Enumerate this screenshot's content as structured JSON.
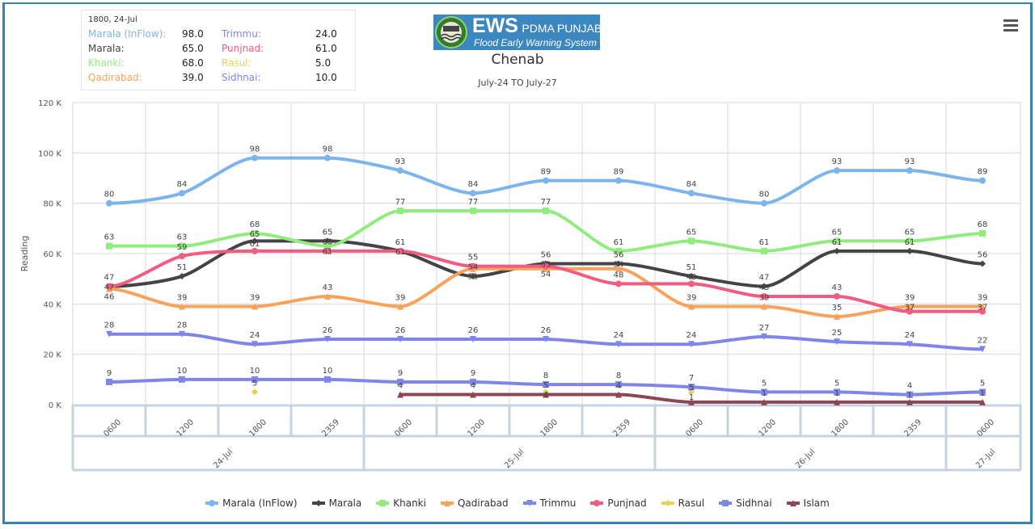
{
  "logo": {
    "text_main": "EWS",
    "text_side": "PDMA PUNJAB",
    "text_sub": "Flood Early Warning System"
  },
  "menu_icon": "hamburger-menu-icon",
  "tooltip": {
    "header": "1800, 24-Jul",
    "rows": [
      {
        "name": "Marala (InFlow):",
        "value": "98.0"
      },
      {
        "name": "Marala:",
        "value": "65.0"
      },
      {
        "name": "Khanki:",
        "value": "68.0"
      },
      {
        "name": "Qadirabad:",
        "value": "39.0"
      },
      {
        "name": "Trimmu:",
        "value": "24.0"
      },
      {
        "name": "Punjnad:",
        "value": "61.0"
      },
      {
        "name": "Rasul:",
        "value": "5.0"
      },
      {
        "name": "Sidhnai:",
        "value": "10.0"
      }
    ]
  },
  "chart_data": {
    "type": "line",
    "title": "Chenab",
    "subtitle": "July-24 TO July-27",
    "ylabel": "Reading",
    "ylim": [
      0,
      120
    ],
    "yticks": [
      "0 K",
      "20 K",
      "40 K",
      "60 K",
      "80 K",
      "100 K",
      "120 K"
    ],
    "ytick_values": [
      0,
      20,
      40,
      60,
      80,
      100,
      120
    ],
    "x": [
      "0600",
      "1200",
      "1800",
      "2359",
      "0600",
      "1200",
      "1800",
      "2359",
      "0600",
      "1200",
      "1800",
      "2359",
      "0600"
    ],
    "date_groups": [
      {
        "label": "24-Jul",
        "count": 4
      },
      {
        "label": "25-Jul",
        "count": 4
      },
      {
        "label": "26-Jul",
        "count": 4
      },
      {
        "label": "27-Jul",
        "count": 1
      }
    ],
    "grid": true,
    "legend_position": "bottom-center",
    "series": [
      {
        "name": "Marala (InFlow)",
        "color": "#7cb5ec",
        "marker": "circle",
        "values": [
          80,
          84,
          98,
          98,
          93,
          84,
          89,
          89,
          84,
          80,
          93,
          93,
          89
        ]
      },
      {
        "name": "Marala",
        "color": "#434348",
        "marker": "diamond",
        "values": [
          47,
          51,
          65,
          65,
          61,
          51,
          56,
          56,
          51,
          47,
          61,
          61,
          56
        ]
      },
      {
        "name": "Khanki",
        "color": "#90ed7d",
        "marker": "square",
        "values": [
          63,
          63,
          68,
          63,
          77,
          77,
          77,
          61,
          65,
          61,
          65,
          65,
          68
        ]
      },
      {
        "name": "Qadirabad",
        "color": "#f7a35c",
        "marker": "triangle",
        "values": [
          46,
          39,
          39,
          43,
          39,
          54,
          54,
          54,
          39,
          39,
          35,
          39,
          39
        ]
      },
      {
        "name": "Trimmu",
        "color": "#8085e9",
        "marker": "triangle-down",
        "values": [
          28,
          28,
          24,
          26,
          26,
          26,
          26,
          24,
          24,
          27,
          25,
          24,
          22
        ]
      },
      {
        "name": "Punjnad",
        "color": "#f15c80",
        "marker": "circle",
        "values": [
          47,
          59,
          61,
          61,
          61,
          55,
          55,
          48,
          48,
          43,
          43,
          37,
          37
        ]
      },
      {
        "name": "Rasul",
        "color": "#e4d354",
        "marker": "diamond",
        "values": [
          null,
          null,
          5,
          null,
          null,
          null,
          5,
          null,
          5,
          null,
          null,
          null,
          null
        ]
      },
      {
        "name": "Sidhnai",
        "color": "#8085e8",
        "marker": "square",
        "values": [
          9,
          10,
          10,
          10,
          9,
          9,
          8,
          8,
          7,
          5,
          5,
          4,
          5
        ]
      },
      {
        "name": "Islam",
        "color": "#8d4653",
        "marker": "triangle",
        "values": [
          null,
          null,
          null,
          null,
          4,
          4,
          4,
          4,
          1,
          1,
          1,
          1,
          1
        ]
      }
    ]
  }
}
